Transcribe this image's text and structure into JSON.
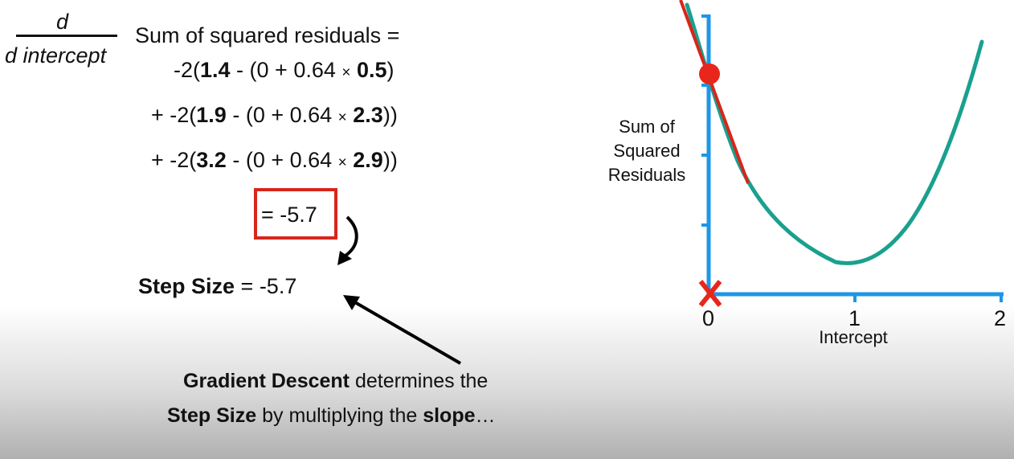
{
  "equation": {
    "fraction_numerator": "d",
    "fraction_denominator": "d intercept",
    "lhs": "Sum of squared residuals =",
    "terms": [
      {
        "prefix": "-2(",
        "observed": "1.4",
        "mid": " - (0 + 0.64 ",
        "times": "×",
        "weight": "0.5",
        "suffix": ")"
      },
      {
        "prefix": "+ -2(",
        "observed": "1.9",
        "mid": " - (0 + 0.64 ",
        "times": "×",
        "weight": "2.3",
        "suffix": "))"
      },
      {
        "prefix": "+ -2(",
        "observed": "3.2",
        "mid": " - (0 + 0.64 ",
        "times": "×",
        "weight": "2.9",
        "suffix": "))"
      }
    ],
    "result": "= -5.7"
  },
  "step_size": {
    "label": "Step Size",
    "value": " = -5.7"
  },
  "caption": {
    "line1_bold": "Gradient Descent",
    "line1_rest": " determines the",
    "line2_bold1": "Step Size",
    "line2_mid": " by multiplying the ",
    "line2_bold2": "slope",
    "line2_end": "…"
  },
  "chart": {
    "ylabel_lines": [
      "Sum of",
      "Squared",
      "Residuals"
    ],
    "xlabel": "Intercept",
    "x_ticks": [
      "0",
      "1",
      "2"
    ],
    "current_intercept": 0,
    "curve_minimum_intercept": 1,
    "colors": {
      "axis": "#1e96e6",
      "curve": "#1aa08e",
      "tangent": "#d7261b",
      "point": "#e8261b"
    }
  }
}
